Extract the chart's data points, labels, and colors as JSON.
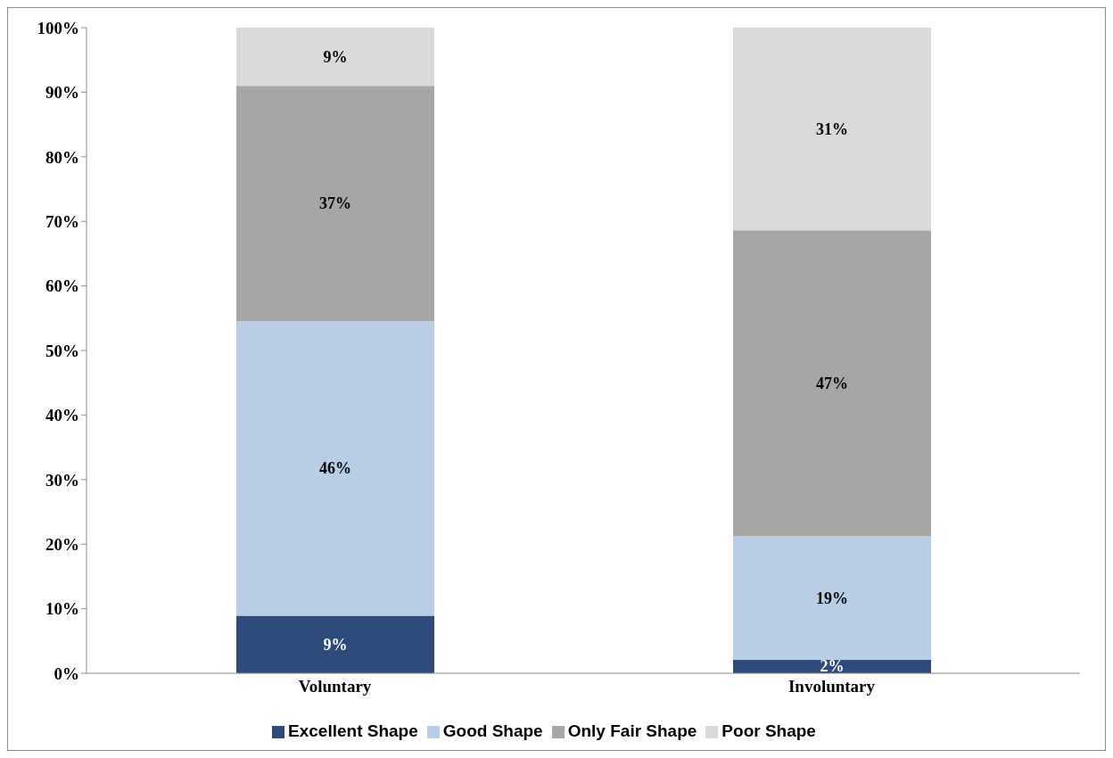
{
  "chart_data": {
    "type": "bar",
    "stacked": true,
    "categories": [
      "Voluntary",
      "Involuntary"
    ],
    "series": [
      {
        "name": "Excellent Shape",
        "color": "#2f4b7c",
        "values": [
          8.9,
          2.1
        ],
        "value_labels": [
          "9%",
          "2%"
        ]
      },
      {
        "name": "Good Shape",
        "color": "#b9cde5",
        "values": [
          45.6,
          19.1
        ],
        "value_labels": [
          "46%",
          "19%"
        ]
      },
      {
        "name": "Only Fair Shape",
        "color": "#a6a6a6",
        "values": [
          36.5,
          47.4
        ],
        "value_labels": [
          "37%",
          "47%"
        ]
      },
      {
        "name": "Poor Shape",
        "color": "#d9d9d9",
        "values": [
          9.0,
          31.4
        ],
        "value_labels": [
          "9%",
          "31%"
        ]
      }
    ],
    "ylim": [
      0,
      100
    ],
    "yticks": [
      {
        "value": 0,
        "label": "0%"
      },
      {
        "value": 10,
        "label": "10%"
      },
      {
        "value": 20,
        "label": "20%"
      },
      {
        "value": 30,
        "label": "30%"
      },
      {
        "value": 40,
        "label": "40%"
      },
      {
        "value": 50,
        "label": "50%"
      },
      {
        "value": 60,
        "label": "60%"
      },
      {
        "value": 70,
        "label": "70%"
      },
      {
        "value": 80,
        "label": "80%"
      },
      {
        "value": 90,
        "label": "90%"
      },
      {
        "value": 100,
        "label": "100%"
      }
    ],
    "grid": false,
    "legend": "bottom"
  }
}
